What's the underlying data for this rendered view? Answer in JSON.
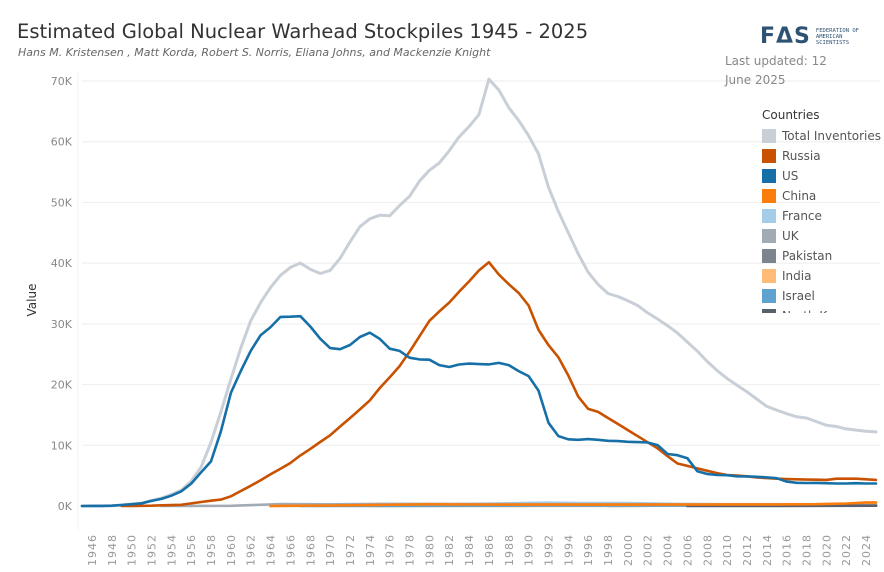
{
  "header": {
    "title": "Estimated Global Nuclear Warhead Stockpiles 1945 - 2025",
    "subtitle": "Hans M. Kristensen , Matt Korda, Robert S. Norris, Eliana Johns, and Mackenzie Knight",
    "logo_mark": "FΔS",
    "logo_text": "FEDERATION OF AMERICAN SCIENTISTS",
    "last_updated": "Last updated: 12 June 2025"
  },
  "legend": {
    "title": "Countries",
    "items": [
      {
        "label": "Total  Inventories",
        "color": "#c9cfd6"
      },
      {
        "label": "Russia",
        "color": "#c85200"
      },
      {
        "label": "US",
        "color": "#1670a7"
      },
      {
        "label": "China",
        "color": "#fc7d0b"
      },
      {
        "label": "France",
        "color": "#a3cce9"
      },
      {
        "label": "UK",
        "color": "#a2aab4"
      },
      {
        "label": "Pakistan",
        "color": "#7b848f"
      },
      {
        "label": "India",
        "color": "#ffbc79"
      },
      {
        "label": "Israel",
        "color": "#5fa2ce"
      },
      {
        "label": "North Korea",
        "color": "#57606c"
      }
    ]
  },
  "chart_data": {
    "type": "line",
    "title": "Estimated Global Nuclear Warhead Stockpiles 1945 - 2025",
    "xlabel": "",
    "ylabel": "Value",
    "xlim": [
      1945,
      2025
    ],
    "ylim": [
      0,
      70000
    ],
    "y_ticks": [
      0,
      10000,
      20000,
      30000,
      40000,
      50000,
      60000,
      70000
    ],
    "y_tick_labels": [
      "0K",
      "10K",
      "20K",
      "30K",
      "40K",
      "50K",
      "60K",
      "70K"
    ],
    "x_ticks": [
      1946,
      1948,
      1950,
      1952,
      1954,
      1956,
      1958,
      1960,
      1962,
      1964,
      1966,
      1968,
      1970,
      1972,
      1974,
      1976,
      1978,
      1980,
      1982,
      1984,
      1986,
      1988,
      1990,
      1992,
      1994,
      1996,
      1998,
      2000,
      2002,
      2004,
      2006,
      2008,
      2010,
      2012,
      2014,
      2016,
      2018,
      2020,
      2022,
      2024
    ],
    "grid": true,
    "legend_position": "right",
    "years": [
      1945,
      1946,
      1947,
      1948,
      1949,
      1950,
      1951,
      1952,
      1953,
      1954,
      1955,
      1956,
      1957,
      1958,
      1959,
      1960,
      1961,
      1962,
      1963,
      1964,
      1965,
      1966,
      1967,
      1968,
      1969,
      1970,
      1971,
      1972,
      1973,
      1974,
      1975,
      1976,
      1977,
      1978,
      1979,
      1980,
      1981,
      1982,
      1983,
      1984,
      1985,
      1986,
      1987,
      1988,
      1989,
      1990,
      1991,
      1992,
      1993,
      1994,
      1995,
      1996,
      1997,
      1998,
      1999,
      2000,
      2001,
      2002,
      2003,
      2004,
      2005,
      2006,
      2007,
      2008,
      2009,
      2010,
      2011,
      2012,
      2013,
      2014,
      2015,
      2016,
      2017,
      2018,
      2019,
      2020,
      2021,
      2022,
      2023,
      2024,
      2025
    ],
    "series": [
      {
        "name": "Total  Inventories",
        "color": "#c9cfd6",
        "values": [
          2,
          9,
          13,
          50,
          170,
          300,
          460,
          900,
          1300,
          1900,
          2600,
          4100,
          6400,
          10500,
          15500,
          20900,
          26000,
          30500,
          33500,
          36000,
          38000,
          39300,
          40000,
          39000,
          38300,
          38800,
          40800,
          43500,
          46000,
          47300,
          47900,
          47800,
          49500,
          51000,
          53500,
          55300,
          56500,
          58500,
          60800,
          62500,
          64500,
          70300,
          68500,
          65600,
          63500,
          61000,
          58000,
          52500,
          48500,
          45000,
          41500,
          38500,
          36500,
          35000,
          34500,
          33800,
          33000,
          31800,
          30800,
          29700,
          28500,
          27000,
          25500,
          23800,
          22300,
          21000,
          19900,
          18800,
          17600,
          16400,
          15800,
          15200,
          14700,
          14500,
          13900,
          13300,
          13100,
          12700,
          12500,
          12300,
          12200
        ]
      },
      {
        "name": "Russia",
        "color": "#c85200",
        "values": [
          null,
          null,
          null,
          null,
          1,
          5,
          25,
          50,
          120,
          150,
          200,
          426,
          660,
          869,
          1060,
          1605,
          2471,
          3322,
          4238,
          5221,
          6129,
          7089,
          8339,
          9399,
          10538,
          11643,
          13092,
          14478,
          15915,
          17385,
          19443,
          21205,
          23044,
          25393,
          27935,
          30500,
          32049,
          33500,
          35300,
          37000,
          38800,
          40159,
          38107,
          36538,
          35078,
          33017,
          29000,
          26500,
          24500,
          21500,
          18000,
          16000,
          15500,
          14500,
          13500,
          12500,
          11500,
          10500,
          9500,
          8200,
          7000,
          6600,
          6200,
          5800,
          5400,
          5100,
          5000,
          4900,
          4700,
          4600,
          4500,
          4450,
          4400,
          4350,
          4330,
          4300,
          4500,
          4500,
          4500,
          4400,
          4300
        ]
      },
      {
        "name": "US",
        "color": "#1670a7",
        "values": [
          2,
          9,
          13,
          50,
          170,
          299,
          438,
          841,
          1169,
          1703,
          2422,
          3692,
          5543,
          7345,
          12298,
          18638,
          22229,
          25540,
          28133,
          29463,
          31139,
          31175,
          31255,
          29561,
          27552,
          26008,
          25830,
          26516,
          27835,
          28537,
          27519,
          25914,
          25542,
          24418,
          24138,
          24104,
          23208,
          22886,
          23305,
          23459,
          23368,
          23317,
          23575,
          23205,
          22217,
          21392,
          19008,
          13708,
          11511,
          10979,
          10904,
          11011,
          10903,
          10732,
          10685,
          10577,
          10526,
          10457,
          10027,
          8570,
          8360,
          7853,
          5709,
          5273,
          5113,
          5066,
          4897,
          4881,
          4804,
          4717,
          4571,
          4018,
          3822,
          3785,
          3805,
          3750,
          3708,
          3708,
          3748,
          3708,
          3700
        ]
      },
      {
        "name": "China",
        "color": "#fc7d0b",
        "x": [
          1964,
          1970,
          1975,
          1980,
          1985,
          1990,
          2000,
          2010,
          2015,
          2019,
          2020,
          2022,
          2023,
          2024,
          2025
        ],
        "values": [
          1,
          75,
          185,
          280,
          250,
          230,
          230,
          260,
          260,
          290,
          350,
          410,
          500,
          600,
          600
        ]
      },
      {
        "name": "France",
        "color": "#a3cce9",
        "x": [
          1964,
          1970,
          1975,
          1980,
          1985,
          1990,
          1992,
          1995,
          2000,
          2005,
          2010,
          2025
        ],
        "values": [
          4,
          36,
          188,
          250,
          360,
          505,
          540,
          500,
          470,
          350,
          300,
          290
        ]
      },
      {
        "name": "UK",
        "color": "#a2aab4",
        "x": [
          1953,
          1955,
          1960,
          1965,
          1970,
          1975,
          1980,
          1990,
          2000,
          2010,
          2025
        ],
        "values": [
          1,
          10,
          30,
          310,
          280,
          350,
          350,
          300,
          280,
          225,
          225
        ]
      },
      {
        "name": "Pakistan",
        "color": "#7b848f",
        "x": [
          1998,
          2005,
          2010,
          2015,
          2025
        ],
        "values": [
          5,
          60,
          110,
          150,
          170
        ]
      },
      {
        "name": "India",
        "color": "#ffbc79",
        "x": [
          1974,
          1990,
          2000,
          2010,
          2020,
          2025
        ],
        "values": [
          1,
          15,
          40,
          90,
          150,
          180
        ]
      },
      {
        "name": "Israel",
        "color": "#5fa2ce",
        "x": [
          1967,
          1975,
          1990,
          2025
        ],
        "values": [
          2,
          20,
          60,
          90
        ]
      },
      {
        "name": "North Korea",
        "color": "#57606c",
        "x": [
          2006,
          2015,
          2025
        ],
        "values": [
          1,
          10,
          50
        ]
      }
    ]
  }
}
